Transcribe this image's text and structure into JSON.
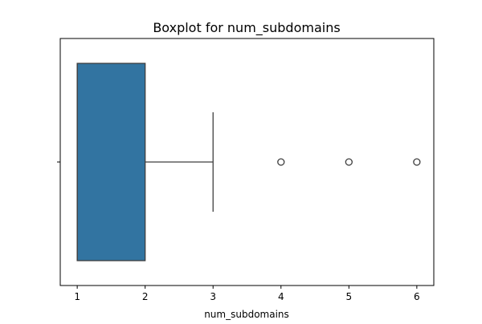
{
  "chart_data": {
    "type": "boxplot",
    "title": "Boxplot for num_subdomains",
    "xlabel": "num_subdomains",
    "ylabel": "",
    "orientation": "horizontal",
    "xlim": [
      0.75,
      6.25
    ],
    "xticks": [
      1,
      2,
      3,
      4,
      5,
      6
    ],
    "xtick_labels": [
      "1",
      "2",
      "3",
      "4",
      "5",
      "6"
    ],
    "grid": false,
    "box": {
      "min": 1,
      "q1": 1,
      "median": 1,
      "q3": 2,
      "whisker_low": 1,
      "whisker_high": 3,
      "outliers": [
        4,
        5,
        6
      ]
    },
    "box_color": "#3274a1",
    "edge_color": "#3f3f3f"
  }
}
